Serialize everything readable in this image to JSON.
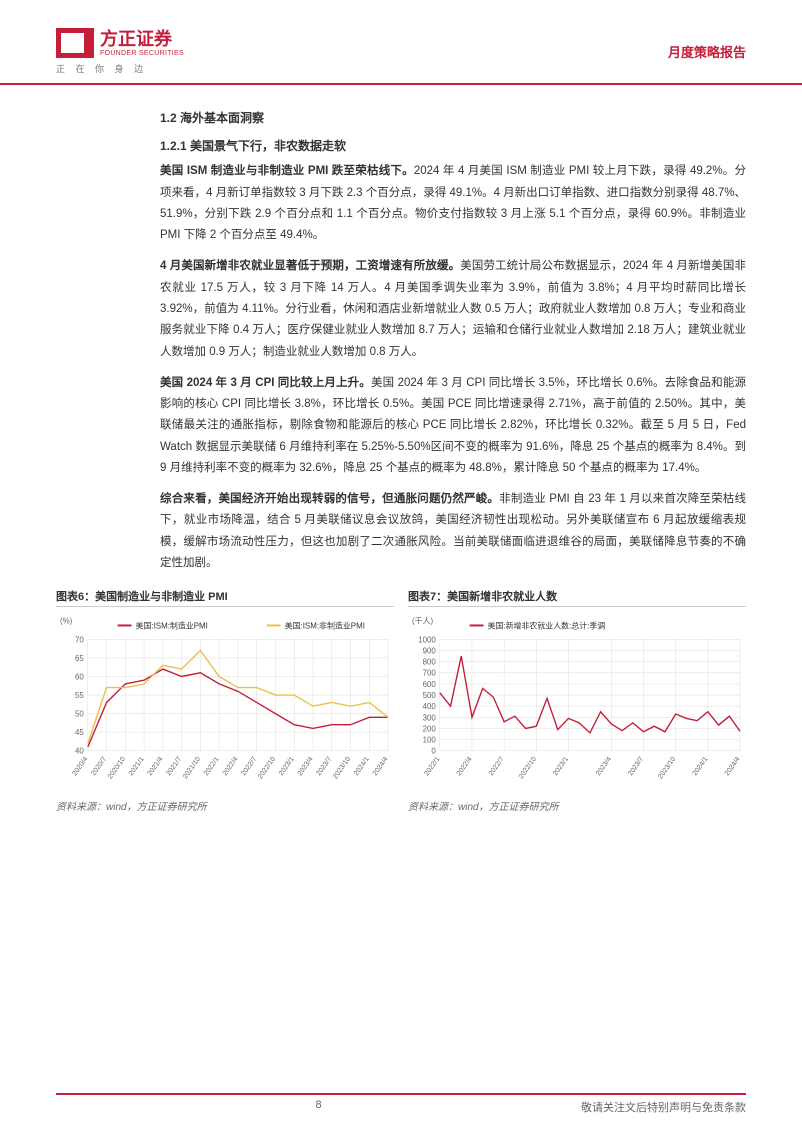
{
  "header": {
    "logo_cn": "方正证券",
    "logo_en": "FOUNDER SECURITIES",
    "logo_sub": "正 在 你 身 边",
    "report_type": "月度策略报告"
  },
  "sections": {
    "s1": "1.2 海外基本面洞察",
    "s2": "1.2.1 美国景气下行，非农数据走软"
  },
  "paragraphs": {
    "p1_lead": "美国 ISM 制造业与非制造业 PMI 跌至荣枯线下。",
    "p1_body": "2024 年 4 月美国 ISM 制造业 PMI 较上月下跌，录得 49.2%。分项来看，4 月新订单指数较 3 月下跌 2.3 个百分点，录得 49.1%。4 月新出口订单指数、进口指数分别录得 48.7%、51.9%，分别下跌 2.9 个百分点和 1.1 个百分点。物价支付指数较 3 月上涨 5.1 个百分点，录得 60.9%。非制造业 PMI 下降 2 个百分点至 49.4%。",
    "p2_lead": "4 月美国新增非农就业显著低于预期，工资增速有所放缓。",
    "p2_body": "美国劳工统计局公布数据显示，2024 年 4 月新增美国非农就业 17.5 万人，较 3 月下降 14 万人。4 月美国季调失业率为 3.9%，前值为 3.8%；4 月平均时薪同比增长 3.92%，前值为 4.11%。分行业看，休闲和酒店业新增就业人数 0.5 万人；政府就业人数增加 0.8 万人；专业和商业服务就业下降 0.4 万人；医疗保健业就业人数增加 8.7 万人；运输和仓储行业就业人数增加 2.18 万人；建筑业就业人数增加 0.9 万人；制造业就业人数增加 0.8 万人。",
    "p3_lead": "美国 2024 年 3 月 CPI 同比较上月上升。",
    "p3_body": "美国 2024 年 3 月 CPI 同比增长 3.5%，环比增长 0.6%。去除食品和能源影响的核心 CPI 同比增长 3.8%，环比增长 0.5%。美国 PCE 同比增速录得 2.71%，高于前值的 2.50%。其中，美联储最关注的通胀指标，剔除食物和能源后的核心 PCE 同比增长 2.82%，环比增长 0.32%。截至 5 月 5 日，Fed Watch 数据显示美联储 6 月维持利率在 5.25%-5.50%区间不变的概率为 91.6%，降息 25 个基点的概率为 8.4%。到 9 月维持利率不变的概率为 32.6%，降息 25 个基点的概率为 48.8%，累计降息 50 个基点的概率为 17.4%。",
    "p4_lead": "综合来看，美国经济开始出现转弱的信号，但通胀问题仍然严峻。",
    "p4_body": "非制造业 PMI 自 23 年 1 月以来首次降至荣枯线下，就业市场降温，结合 5 月美联储议息会议放鸽，美国经济韧性出现松动。另外美联储宣布 6 月起放缓缩表规模，缓解市场流动性压力，但这也加剧了二次通胀风险。当前美联储面临进退维谷的局面，美联储降息节奏的不确定性加剧。"
  },
  "chart6": {
    "title": "图表6：美国制造业与非制造业 PMI",
    "source": "资料来源：wind，方正证券研究所",
    "type": "line",
    "ylabel": "(%)",
    "ylim": [
      40,
      70
    ],
    "ytick_step": 5,
    "x_labels": [
      "2020/4",
      "2020/7",
      "2020/10",
      "2021/1",
      "2021/4",
      "2021/7",
      "2021/10",
      "2022/1",
      "2022/4",
      "2022/7",
      "2022/10",
      "2023/1",
      "2023/4",
      "2023/7",
      "2023/10",
      "2024/1",
      "2024/4"
    ],
    "series": [
      {
        "name": "美国:ISM:制造业PMI",
        "color": "#c41e3a",
        "data": [
          41,
          53,
          58,
          59,
          62,
          60,
          61,
          58,
          56,
          53,
          50,
          47,
          46,
          47,
          47,
          49,
          49
        ]
      },
      {
        "name": "美国:ISM:非制造业PMI",
        "color": "#e8c14a",
        "data": [
          42,
          57,
          57,
          58,
          63,
          62,
          67,
          60,
          57,
          57,
          55,
          55,
          52,
          53,
          52,
          53,
          49
        ]
      }
    ],
    "grid_color": "#dddddd",
    "background_color": "#ffffff",
    "line_width": 1.4,
    "label_fontsize": 8
  },
  "chart7": {
    "title": "图表7：美国新增非农就业人数",
    "source": "资料来源：wind，方正证券研究所",
    "type": "line",
    "ylabel": "(千人)",
    "ylim": [
      0,
      1000
    ],
    "ytick_step": 100,
    "x_labels": [
      "2022/1",
      "2022/4",
      "2022/7",
      "2022/10",
      "2023/1",
      "2023/4",
      "2023/7",
      "2023/10",
      "2024/1",
      "2024/4"
    ],
    "series": [
      {
        "name": "美国:新增非农就业人数:总计:季调",
        "color": "#c41e3a",
        "data": [
          520,
          400,
          850,
          300,
          560,
          480,
          260,
          310,
          200,
          220,
          470,
          190,
          290,
          250,
          160,
          350,
          240,
          180,
          250,
          170,
          220,
          170,
          330,
          290,
          270,
          350,
          230,
          310,
          175
        ]
      }
    ],
    "grid_color": "#dddddd",
    "background_color": "#ffffff",
    "line_width": 1.4,
    "label_fontsize": 8
  },
  "footer": {
    "page": "8",
    "disclaimer": "敬请关注文后特别声明与免责条款"
  }
}
